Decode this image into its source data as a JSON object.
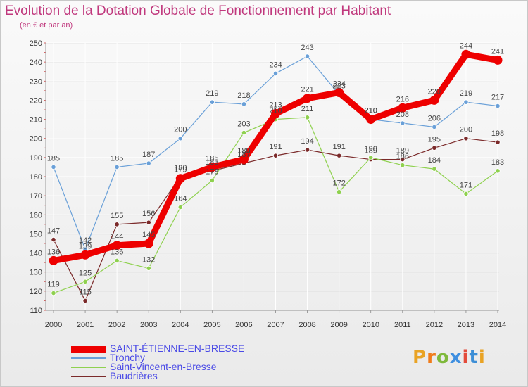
{
  "title": "Evolution de la Dotation Globale de Fonctionnement par Habitant",
  "subtitle": "(en € et par an)",
  "brand": {
    "letters": [
      "P",
      "r",
      "o",
      "x",
      "i",
      "t",
      "i"
    ],
    "colors": [
      "#e9a324",
      "#f07c1b",
      "#7fb93b",
      "#3f8fe0",
      "#e34b3b",
      "#3c8ed6",
      "#e9a324"
    ]
  },
  "chart_data": {
    "type": "line",
    "title": "Evolution de la Dotation Globale de Fonctionnement par Habitant",
    "subtitle": "(en € et par an)",
    "xlabel": "",
    "ylabel": "",
    "x": [
      2000,
      2001,
      2002,
      2003,
      2004,
      2005,
      2006,
      2007,
      2008,
      2009,
      2010,
      2011,
      2012,
      2013,
      2014
    ],
    "ylim": [
      110,
      250
    ],
    "yticks": [
      110,
      120,
      130,
      140,
      150,
      160,
      170,
      180,
      190,
      200,
      210,
      220,
      230,
      240,
      250
    ],
    "grid": true,
    "legend_position": "bottom-left",
    "series": [
      {
        "name": "Baudrières",
        "color": "#7b2a2a",
        "width": 1.2,
        "values": [
          147,
          115,
          155,
          156,
          180,
          183,
          187,
          191,
          194,
          191,
          189,
          189,
          195,
          200,
          198
        ]
      },
      {
        "name": "Saint-Vincent-en-Bresse",
        "color": "#8fd14f",
        "width": 1.2,
        "values": [
          119,
          125,
          136,
          132,
          164,
          178,
          203,
          210,
          211,
          172,
          190,
          186,
          184,
          171,
          183
        ]
      },
      {
        "name": "Tronchy",
        "color": "#6aa0d8",
        "width": 1.2,
        "values": [
          185,
          142,
          185,
          187,
          200,
          219,
          218,
          234,
          243,
          223,
          210,
          208,
          206,
          219,
          217
        ]
      },
      {
        "name": "SAINT-ÉTIENNE-EN-BRESSE",
        "color": "#ee0000",
        "width": 9,
        "values": [
          136,
          139,
          144,
          145,
          179,
          185,
          189,
          213,
          221,
          224,
          210,
          216,
          220,
          244,
          241
        ]
      }
    ],
    "legend_order": [
      "SAINT-ÉTIENNE-EN-BRESSE",
      "Tronchy",
      "Saint-Vincent-en-Bresse",
      "Baudrières"
    ]
  }
}
